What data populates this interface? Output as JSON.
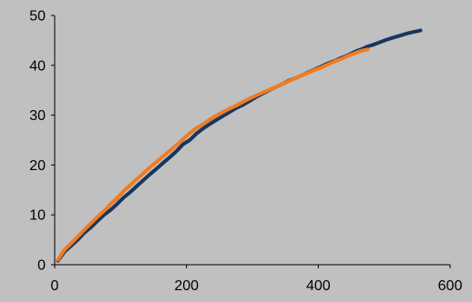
{
  "chart_data": {
    "type": "line",
    "title": "",
    "xlabel": "",
    "ylabel": "",
    "xlim": [
      0,
      600
    ],
    "ylim": [
      0,
      50
    ],
    "x_ticks": [
      "0",
      "200",
      "400",
      "600"
    ],
    "y_ticks": [
      "0",
      "10",
      "20",
      "30",
      "40",
      "50"
    ],
    "grid": false,
    "legend": "none",
    "background": "#c0c0c0",
    "series": [
      {
        "color": "#17365d",
        "x": [
          5,
          15,
          25,
          35,
          45,
          55,
          65,
          75,
          85,
          95,
          105,
          115,
          125,
          135,
          145,
          155,
          165,
          175,
          185,
          195,
          205,
          215,
          225,
          235,
          245,
          255,
          265,
          275,
          285,
          295,
          305,
          315,
          325,
          335,
          345,
          355,
          365,
          375,
          385,
          395,
          405,
          415,
          425,
          435,
          445,
          455,
          465,
          475,
          485,
          495,
          505,
          515,
          525,
          535,
          545,
          555
        ],
        "y": [
          0.8,
          2.6,
          3.8,
          5.0,
          6.4,
          7.5,
          8.8,
          10.0,
          11.0,
          12.2,
          13.5,
          14.6,
          15.8,
          17.0,
          18.2,
          19.3,
          20.5,
          21.6,
          22.8,
          24.2,
          25.0,
          26.3,
          27.3,
          28.2,
          29.0,
          29.8,
          30.6,
          31.4,
          32.0,
          32.8,
          33.6,
          34.3,
          35.0,
          35.6,
          36.2,
          36.9,
          37.4,
          38.0,
          38.6,
          39.2,
          39.8,
          40.4,
          40.9,
          41.5,
          42.0,
          42.7,
          43.2,
          43.8,
          44.2,
          44.7,
          45.2,
          45.6,
          46.0,
          46.4,
          46.7,
          47.0
        ]
      },
      {
        "color": "#f07c22",
        "x": [
          5,
          15,
          25,
          35,
          45,
          55,
          65,
          75,
          85,
          95,
          105,
          115,
          125,
          135,
          145,
          155,
          165,
          175,
          185,
          195,
          205,
          215,
          225,
          235,
          245,
          255,
          265,
          275,
          285,
          295,
          305,
          315,
          325,
          335,
          345,
          355,
          365,
          375,
          385,
          395,
          405,
          415,
          425,
          435,
          445,
          455,
          465,
          475
        ],
        "y": [
          1.0,
          3.0,
          4.3,
          5.6,
          7.0,
          8.3,
          9.6,
          10.8,
          12.2,
          13.4,
          14.8,
          16.0,
          17.2,
          18.4,
          19.6,
          20.7,
          21.8,
          22.9,
          24.0,
          25.2,
          26.4,
          27.4,
          28.2,
          29.1,
          29.9,
          30.6,
          31.3,
          31.9,
          32.6,
          33.3,
          33.9,
          34.5,
          35.1,
          35.6,
          36.2,
          36.8,
          37.4,
          38.0,
          38.5,
          39.1,
          39.6,
          40.2,
          40.8,
          41.3,
          41.9,
          42.4,
          42.9,
          43.2
        ]
      }
    ]
  }
}
